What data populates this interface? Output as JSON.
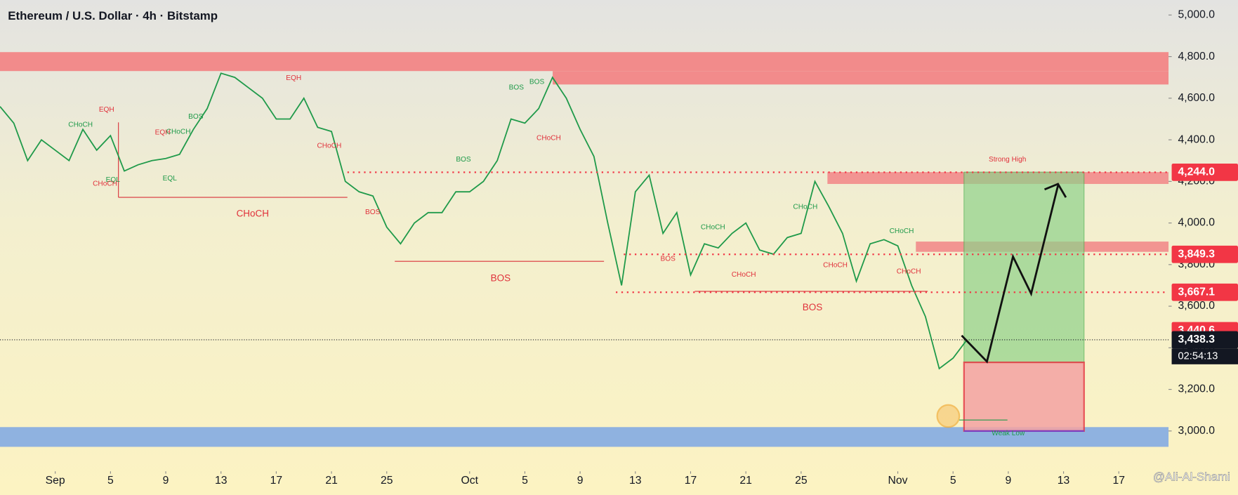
{
  "chart_data": {
    "type": "line",
    "title": "Ethereum / U.S. Dollar · 4h · Bitstamp",
    "watermark": "@Ali-Al-Shami",
    "countdown": "02:54:13",
    "x": [
      -4,
      -3,
      -2,
      -1,
      0,
      1,
      2,
      3,
      4,
      5,
      6,
      7,
      8,
      9,
      10,
      11,
      12,
      13,
      14,
      15,
      16,
      17,
      18,
      19,
      20,
      21,
      22,
      23,
      24,
      25,
      26,
      27,
      28,
      29,
      30,
      31,
      32,
      33,
      34,
      35,
      36,
      37,
      38,
      39,
      40,
      41,
      42,
      43,
      44,
      45,
      46,
      47,
      48,
      49,
      50,
      51,
      52,
      53,
      54,
      55,
      56,
      57,
      58,
      59,
      60,
      61,
      62,
      63,
      64,
      65,
      66
    ],
    "series": [
      {
        "name": "ETHUSD",
        "color": "#1f9a4a",
        "values": [
          4560,
          4480,
          4300,
          4400,
          4350,
          4300,
          4450,
          4350,
          4420,
          4250,
          4280,
          4300,
          4310,
          4330,
          4450,
          4550,
          4720,
          4700,
          4650,
          4600,
          4500,
          4500,
          4600,
          4460,
          4440,
          4200,
          4150,
          4130,
          3980,
          3900,
          4000,
          4050,
          4050,
          4150,
          4150,
          4200,
          4300,
          4500,
          4480,
          4550,
          4700,
          4600,
          4450,
          4320,
          4000,
          3700,
          4150,
          4230,
          3950,
          4050,
          3750,
          3900,
          3880,
          3950,
          4000,
          3870,
          3850,
          3930,
          3950,
          4200,
          4080,
          3950,
          3720,
          3900,
          3920,
          3890,
          3700,
          3550,
          3300,
          3350,
          3438
        ]
      }
    ],
    "xlim": [
      -4,
      80.6
    ],
    "xticks": [
      {
        "value": 0,
        "label": "Sep"
      },
      {
        "value": 4,
        "label": "5"
      },
      {
        "value": 8,
        "label": "9"
      },
      {
        "value": 12,
        "label": "13"
      },
      {
        "value": 16,
        "label": "17"
      },
      {
        "value": 20,
        "label": "21"
      },
      {
        "value": 24,
        "label": "25"
      },
      {
        "value": 30,
        "label": "Oct"
      },
      {
        "value": 34,
        "label": "5"
      },
      {
        "value": 38,
        "label": "9"
      },
      {
        "value": 42,
        "label": "13"
      },
      {
        "value": 46,
        "label": "17"
      },
      {
        "value": 50,
        "label": "21"
      },
      {
        "value": 54,
        "label": "25"
      },
      {
        "value": 61,
        "label": "Nov"
      },
      {
        "value": 65,
        "label": "5"
      },
      {
        "value": 69,
        "label": "9"
      },
      {
        "value": 73,
        "label": "13"
      },
      {
        "value": 77,
        "label": "17"
      }
    ],
    "ylim": [
      2920,
      5000
    ],
    "yticks": [
      {
        "value": 3000,
        "label": "3,000.0"
      },
      {
        "value": 3200,
        "label": "3,200.0"
      },
      {
        "value": 3400,
        "label": "3,400.0"
      },
      {
        "value": 3600,
        "label": "3,600.0"
      },
      {
        "value": 3800,
        "label": "3,800.0"
      },
      {
        "value": 4000,
        "label": "4,000.0"
      },
      {
        "value": 4200,
        "label": "4,200.0"
      },
      {
        "value": 4400,
        "label": "4,400.0"
      },
      {
        "value": 4600,
        "label": "4,600.0"
      },
      {
        "value": 4800,
        "label": "4,800.0"
      },
      {
        "value": 5000,
        "label": "5,000.0"
      }
    ],
    "price_labels": [
      {
        "value": 4244,
        "label": "4,244.0",
        "color": "#f23645"
      },
      {
        "value": 3849.3,
        "label": "3,849.3",
        "color": "#f23645"
      },
      {
        "value": 3667.1,
        "label": "3,667.1",
        "color": "#f23645"
      },
      {
        "value": 3440.6,
        "label": "3,440.6",
        "color": "#f23645"
      },
      {
        "value": 3438.3,
        "label": "3,438.3",
        "color": "#131722"
      }
    ],
    "annotations": [
      "EQH",
      "CHoCH",
      "EQL",
      "CHoCH",
      "CHoCH",
      "EQH",
      "BOS",
      "EQL",
      "CHoCH",
      "BOS",
      "BOS",
      "BOS",
      "BOS",
      "CHoCH",
      "BOS",
      "CHoCH",
      "CHoCH",
      "CHoCH",
      "CHoCH",
      "BOS",
      "CHoCH",
      "CHoCH",
      "BOS",
      "Strong High",
      "Weak Low",
      "EQH",
      "CHoCH"
    ]
  }
}
